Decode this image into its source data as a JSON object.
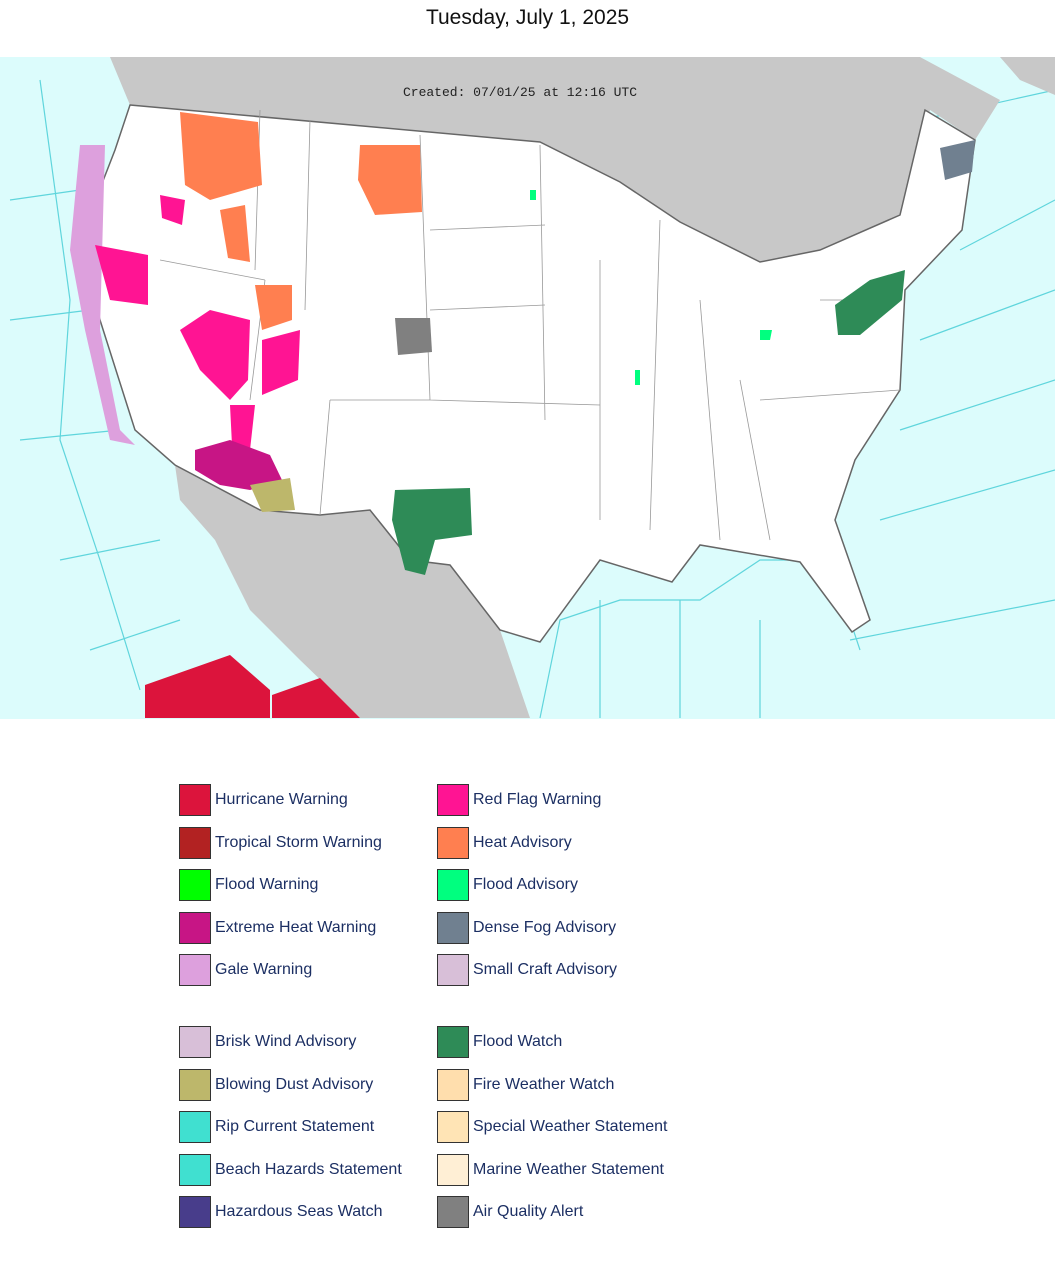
{
  "title": "Tuesday, July 1, 2025",
  "map": {
    "created_label": "Created: 07/01/25 at 12:16 UTC"
  },
  "legend": {
    "sections": [
      {
        "columns": [
          [
            {
              "label": "Hurricane Warning",
              "color": "#dc143c"
            },
            {
              "label": "Tropical Storm Warning",
              "color": "#b22222"
            },
            {
              "label": "Flood Warning",
              "color": "#00ff00"
            },
            {
              "label": "Extreme Heat Warning",
              "color": "#c71585"
            },
            {
              "label": "Gale Warning",
              "color": "#dda0dd"
            }
          ],
          [
            {
              "label": "Red Flag Warning",
              "color": "#ff1493"
            },
            {
              "label": "Heat Advisory",
              "color": "#ff7f50"
            },
            {
              "label": "Flood Advisory",
              "color": "#00ff7f"
            },
            {
              "label": "Dense Fog Advisory",
              "color": "#708090"
            },
            {
              "label": "Small Craft Advisory",
              "color": "#d8bfd8"
            }
          ]
        ]
      },
      {
        "columns": [
          [
            {
              "label": "Brisk Wind Advisory",
              "color": "#d8bfd8"
            },
            {
              "label": "Blowing Dust Advisory",
              "color": "#bdb76b"
            },
            {
              "label": "Rip Current Statement",
              "color": "#40e0d0"
            },
            {
              "label": "Beach Hazards Statement",
              "color": "#40e0d0"
            },
            {
              "label": "Hazardous Seas Watch",
              "color": "#483d8b"
            }
          ],
          [
            {
              "label": "Flood Watch",
              "color": "#2e8b57"
            },
            {
              "label": "Fire Weather Watch",
              "color": "#ffdead"
            },
            {
              "label": "Special Weather Statement",
              "color": "#ffe4b5"
            },
            {
              "label": "Marine Weather Statement",
              "color": "#ffefd5"
            },
            {
              "label": "Air Quality Alert",
              "color": "#808080"
            }
          ]
        ]
      }
    ]
  }
}
